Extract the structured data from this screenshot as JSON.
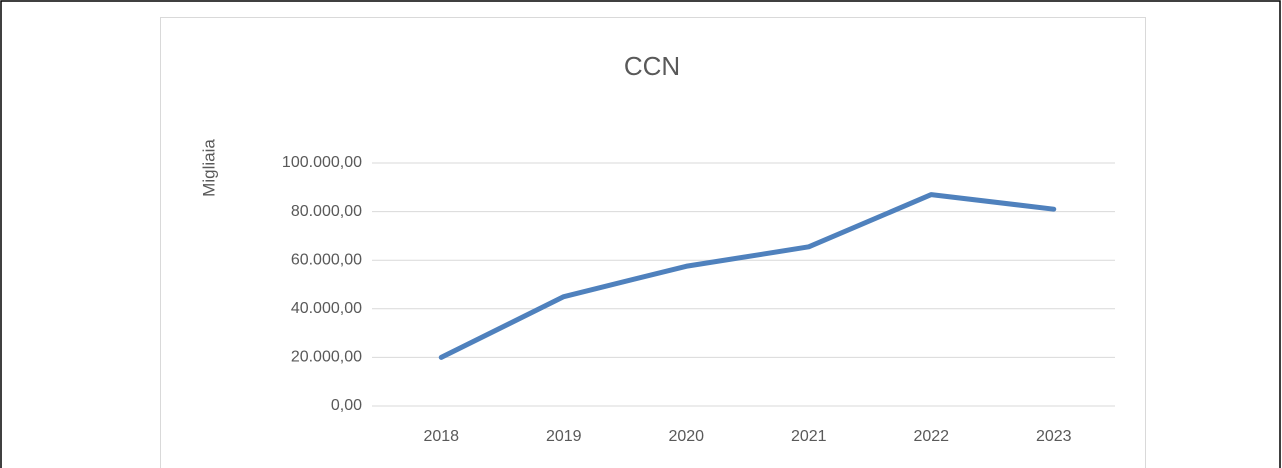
{
  "chart_data": {
    "type": "line",
    "title": "CCN",
    "y_label": "Migliaia",
    "categories": [
      "2018",
      "2019",
      "2020",
      "2021",
      "2022",
      "2023"
    ],
    "series": [
      {
        "name": "CCN",
        "color": "#4f81bd",
        "values": [
          20000,
          45000,
          57500,
          65500,
          87000,
          81000
        ]
      }
    ],
    "ylim": [
      0,
      100000
    ],
    "yticks": [
      {
        "value": 0,
        "label": "0,00"
      },
      {
        "value": 20000,
        "label": "20.000,00"
      },
      {
        "value": 40000,
        "label": "40.000,00"
      },
      {
        "value": 60000,
        "label": "60.000,00"
      },
      {
        "value": 80000,
        "label": "80.000,00"
      },
      {
        "value": 100000,
        "label": "100.000,00"
      }
    ],
    "grid": true
  }
}
